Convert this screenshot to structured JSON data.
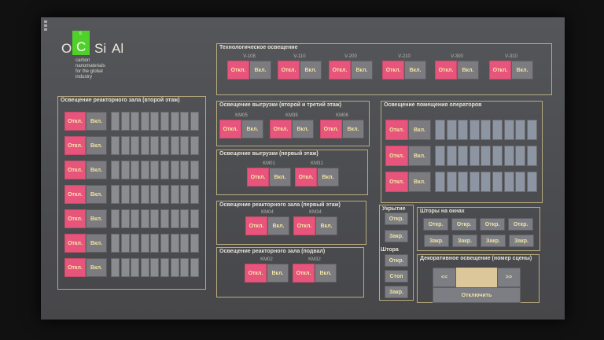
{
  "logo": {
    "o": "O",
    "c": "C",
    "c_number": "6",
    "si": "Si",
    "al": "Al",
    "tagline": [
      "carbon",
      "nanomaterials",
      "for the global",
      "industry"
    ],
    "accent": "#4fd12a"
  },
  "labels": {
    "off": "Откл.",
    "on": "Вкл.",
    "open": "Откр.",
    "close": "Закр.",
    "stop": "Стоп"
  },
  "colors": {
    "off": "#e8557c",
    "on": "#7c7c80",
    "border": "#b9ab7e"
  },
  "tech": {
    "title": "Технологическое освещение",
    "items": [
      "V-108",
      "V-110",
      "V-200",
      "V-210",
      "V-300",
      "V-310"
    ]
  },
  "reactor2": {
    "title": "Освещение реакторного зала (второй этаж)",
    "rows": 7,
    "cells": 9
  },
  "unload23": {
    "title": "Освещение выгрузки (второй и третий этаж)",
    "items": [
      "KM05",
      "KM35",
      "KM06"
    ]
  },
  "unload1": {
    "title": "Освещение выгрузки (первый этаж)",
    "items": [
      "KM01",
      "KM31"
    ]
  },
  "reactor1": {
    "title": "Освещение реакторного зала (первый этаж)",
    "items": [
      "KM04",
      "KM34"
    ]
  },
  "basement": {
    "title": "Освещение реакторного зала (подвал)",
    "items": [
      "KM02",
      "KM32"
    ]
  },
  "operators": {
    "title": "Освещение помещения операторов",
    "rows": 3,
    "cells": 9
  },
  "cover": {
    "title": "Укрытие",
    "curtain_title": "Штора"
  },
  "blinds": {
    "title": "Шторы на окнах",
    "columns": 4
  },
  "decor": {
    "title": "Декоративное освещение (номер сцены)",
    "prev": "<<",
    "next": ">>",
    "off": "Отключить",
    "scene": ""
  }
}
